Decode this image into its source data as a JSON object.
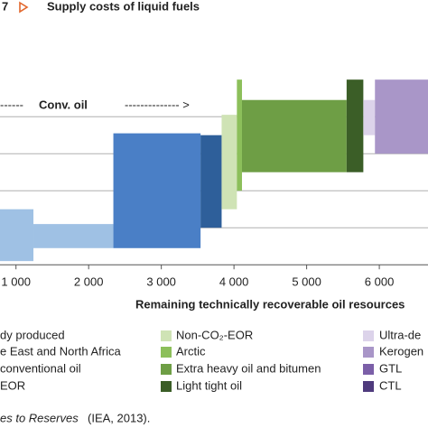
{
  "chart_data": {
    "type": "supply-curve",
    "title_number": "7",
    "title": "Supply costs of liquid fuels",
    "annotation": "Conv. oil",
    "x_label": "Remaining technically recoverable oil resources",
    "xlim": [
      780,
      6670
    ],
    "ylim": [
      -15,
      143
    ],
    "xticks": [
      {
        "value": 1000,
        "label": "1 000"
      },
      {
        "value": 2000,
        "label": "2 000"
      },
      {
        "value": 3000,
        "label": "3 000"
      },
      {
        "value": 4000,
        "label": "4 000"
      },
      {
        "value": 5000,
        "label": "5 000"
      },
      {
        "value": 6000,
        "label": "6 000"
      }
    ],
    "yticks": [
      20,
      40,
      60,
      80
    ],
    "grid": true,
    "blocks": [
      {
        "x": [
          780,
          1240
        ],
        "y": [
          2,
          30
        ],
        "color": "#9fc1e4"
      },
      {
        "x": [
          1240,
          2340
        ],
        "y": [
          9,
          22
        ],
        "color": "#9fc1e4"
      },
      {
        "x": [
          2340,
          3540
        ],
        "y": [
          9,
          71
        ],
        "color": "#4a7fc6"
      },
      {
        "x": [
          3540,
          3830
        ],
        "y": [
          20,
          70
        ],
        "color": "#2e5f9a"
      },
      {
        "x": [
          3830,
          4040
        ],
        "y": [
          30,
          81
        ],
        "color": "#cfe3b5"
      },
      {
        "x": [
          4040,
          4110
        ],
        "y": [
          40,
          100
        ],
        "color": "#8cbf5a"
      },
      {
        "x": [
          4110,
          5550
        ],
        "y": [
          50,
          89
        ],
        "color": "#6e9e45"
      },
      {
        "x": [
          5550,
          5780
        ],
        "y": [
          50,
          100
        ],
        "color": "#3b5e27"
      },
      {
        "x": [
          5780,
          5940
        ],
        "y": [
          70,
          89
        ],
        "color": "#dcd3ea"
      },
      {
        "x": [
          5940,
          6670
        ],
        "y": [
          60,
          100
        ],
        "color": "#a996c8"
      }
    ],
    "legend": [
      {
        "name": "dy produced"
      },
      {
        "name": "e East and North Africa"
      },
      {
        "name": "conventional oil"
      },
      {
        "name": "EOR"
      },
      {
        "name": "Non-CO₂-EOR",
        "color": "#cfe3b5"
      },
      {
        "name": "Arctic",
        "color": "#8cbf5a"
      },
      {
        "name": "Extra heavy oil and bitumen",
        "color": "#6e9e45"
      },
      {
        "name": "Light tight oil",
        "color": "#3b5e27"
      },
      {
        "name": "Ultra-de",
        "color": "#dcd3ea"
      },
      {
        "name": "Kerogen",
        "color": "#a996c8"
      },
      {
        "name": "GTL",
        "color": "#7b5fa8"
      },
      {
        "name": "CTL",
        "color": "#4f3b7d"
      }
    ],
    "source_italic": "es to Reserves",
    "source_rest": " (IEA, 2013)."
  }
}
